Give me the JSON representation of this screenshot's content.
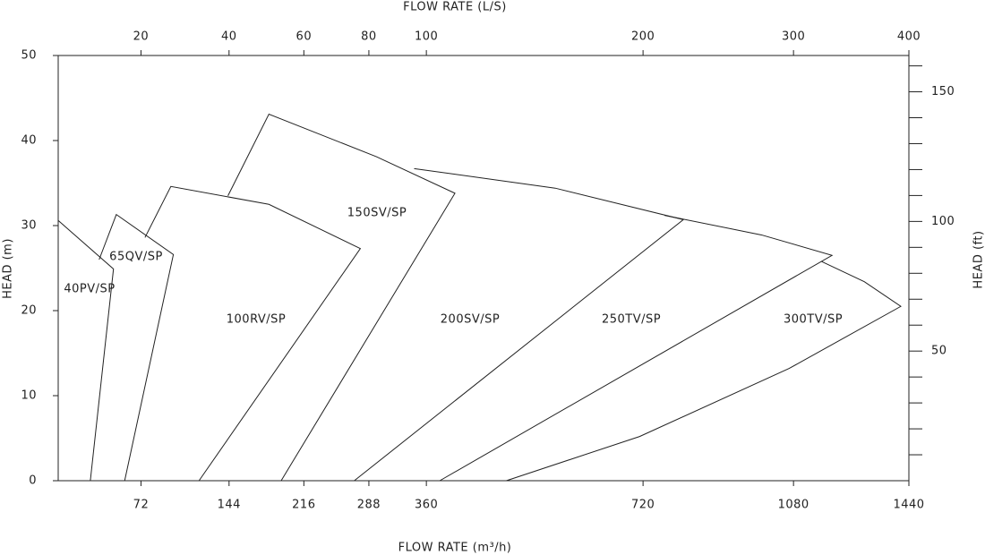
{
  "chart_data": {
    "type": "line",
    "x_label": "FLOW RATE (m³/h)",
    "x2_label": "FLOW RATE (L/S)",
    "y_label": "HEAD (m)",
    "y2_label": "HEAD (ft)",
    "xlim": [
      15,
      1440
    ],
    "xscale_offset": 300,
    "xticks": [
      72,
      144,
      216,
      288,
      360,
      720,
      1080,
      1440
    ],
    "x2lim": [
      4.17,
      400
    ],
    "x2scale_offset": 83.33,
    "x2ticks": [
      20,
      40,
      60,
      80,
      100,
      200,
      300,
      400
    ],
    "ylim": [
      0,
      50
    ],
    "yticks": [
      0,
      10,
      20,
      30,
      40,
      50
    ],
    "y2lim": [
      0,
      164
    ],
    "y2ticks": [
      50,
      100,
      150
    ],
    "y2minor_ticks": [
      10,
      20,
      30,
      40,
      60,
      70,
      80,
      90,
      110,
      120,
      130,
      140,
      160
    ],
    "color": "#222222",
    "series": [
      {
        "name": "40PV/SP",
        "x": [
          15,
          52,
          36
        ],
        "values": [
          30.6,
          24.9,
          0
        ]
      },
      {
        "name": "65QV/SP",
        "x": [
          42,
          54,
          97,
          60
        ],
        "values": [
          26.0,
          31.3,
          26.6,
          0
        ]
      },
      {
        "name": "100RV/SP",
        "x": [
          75,
          95,
          181,
          278,
          118
        ],
        "values": [
          28.6,
          34.6,
          32.5,
          27.3,
          0
        ]
      },
      {
        "name": "150SV/SP",
        "x": [
          143,
          181,
          297,
          399,
          193
        ],
        "values": [
          33.5,
          43.1,
          38.1,
          33.8,
          0
        ]
      },
      {
        "name": "200SV/SP",
        "x": [
          344,
          555,
          806,
          271
        ],
        "values": [
          36.7,
          34.4,
          30.7,
          0
        ]
      },
      {
        "name": "250TV/SP",
        "x": [
          765,
          994,
          1191,
          378
        ],
        "values": [
          31.2,
          28.9,
          26.5,
          0
        ]
      },
      {
        "name": "300TV/SP",
        "x": [
          1159,
          1291,
          1412,
          1068,
          713,
          475
        ],
        "values": [
          25.8,
          23.4,
          20.5,
          13.2,
          5.2,
          0
        ]
      }
    ]
  }
}
